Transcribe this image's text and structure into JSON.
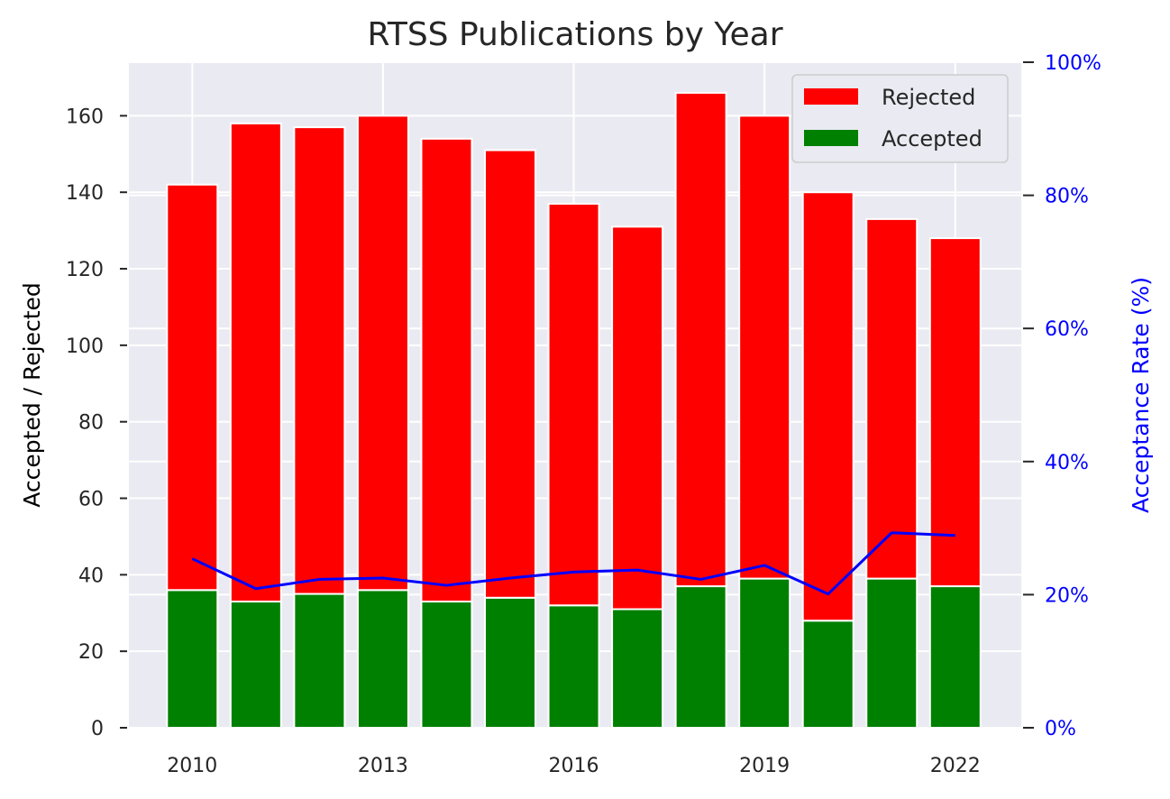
{
  "chart_data": {
    "type": "bar",
    "title": "RTSS Publications by Year",
    "ylabel": "Accepted / Rejected",
    "y2label": "Acceptance Rate (%)",
    "categories": [
      2010,
      2011,
      2012,
      2013,
      2014,
      2015,
      2016,
      2017,
      2018,
      2019,
      2020,
      2021,
      2022
    ],
    "x_tick_labels": [
      "2010",
      "2013",
      "2016",
      "2019",
      "2022"
    ],
    "x_tick_values": [
      2010,
      2013,
      2016,
      2019,
      2022
    ],
    "ylim": [
      0,
      174
    ],
    "y_ticks": [
      0,
      20,
      40,
      60,
      80,
      100,
      120,
      140,
      160
    ],
    "y2lim": [
      0,
      100
    ],
    "y2_ticks": [
      0,
      20,
      40,
      60,
      80,
      100
    ],
    "y2_tick_labels": [
      "0%",
      "20%",
      "40%",
      "60%",
      "80%",
      "100%"
    ],
    "series": [
      {
        "name": "Rejected",
        "color": "#ff0000",
        "values": [
          106,
          125,
          122,
          124,
          121,
          117,
          105,
          100,
          129,
          121,
          112,
          94,
          91
        ]
      },
      {
        "name": "Accepted",
        "color": "#008000",
        "values": [
          36,
          33,
          35,
          36,
          33,
          34,
          32,
          31,
          37,
          39,
          28,
          39,
          37
        ]
      }
    ],
    "line_series": {
      "axis": "right",
      "color": "#0000ff",
      "values": [
        25.4,
        20.9,
        22.3,
        22.5,
        21.4,
        22.5,
        23.4,
        23.7,
        22.3,
        24.4,
        20.1,
        29.3,
        28.9
      ]
    },
    "legend": {
      "placement": "top-right",
      "entries": [
        "Rejected",
        "Accepted"
      ]
    },
    "grid": true,
    "stacked": true
  }
}
